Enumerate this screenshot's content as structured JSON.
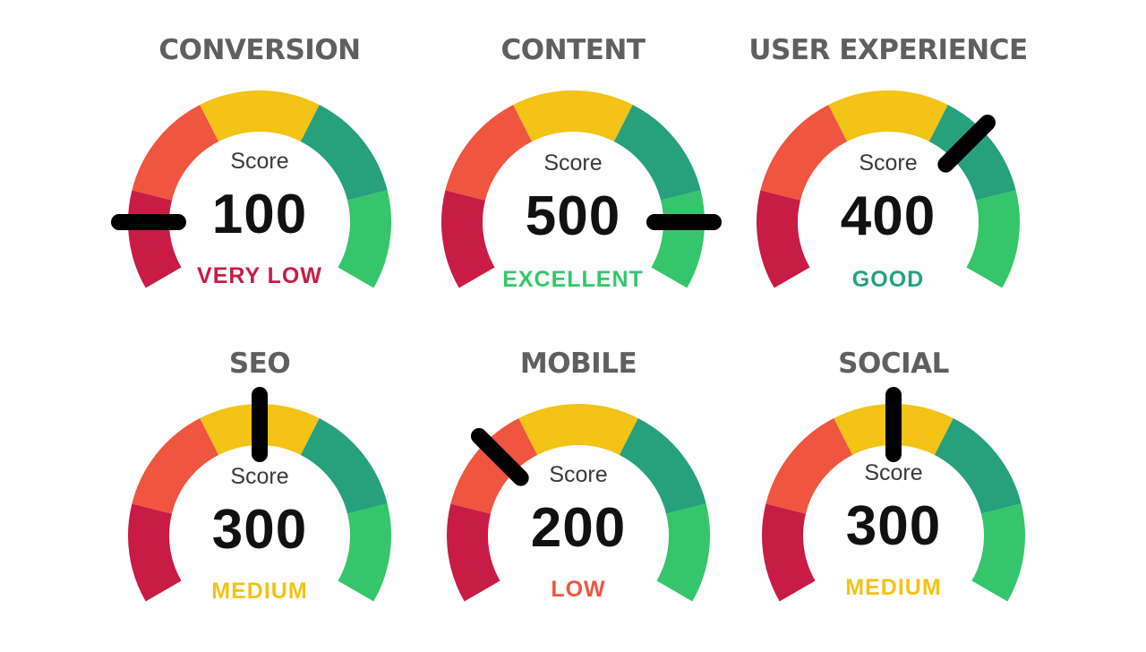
{
  "colors": {
    "red": "#c81c45",
    "orange": "#f05540",
    "yellow": "#f3c316",
    "teal": "#27a07c",
    "green": "#35c66b",
    "needle": "#000000",
    "title": "#5f5f5f"
  },
  "gauges": [
    {
      "title": "CONVERSION",
      "score_label": "Score",
      "value": "100",
      "rating": "VERY LOW",
      "rating_color": "#c81c45",
      "level": 100,
      "scale": [
        100,
        500
      ]
    },
    {
      "title": "CONTENT",
      "score_label": "Score",
      "value": "500",
      "rating": "EXCELLENT",
      "rating_color": "#35c66b",
      "level": 500,
      "scale": [
        100,
        500
      ]
    },
    {
      "title": "USER EXPERIENCE",
      "score_label": "Score",
      "value": "400",
      "rating": "GOOD",
      "rating_color": "#27a07c",
      "level": 400,
      "scale": [
        100,
        500
      ]
    },
    {
      "title": "SEO",
      "score_label": "Score",
      "value": "300",
      "rating": "MEDIUM",
      "rating_color": "#f3c316",
      "level": 300,
      "scale": [
        100,
        500
      ]
    },
    {
      "title": "MOBILE",
      "score_label": "Score",
      "value": "200",
      "rating": "LOW",
      "rating_color": "#f05540",
      "level": 200,
      "scale": [
        100,
        500
      ]
    },
    {
      "title": "SOCIAL",
      "score_label": "Score",
      "value": "300",
      "rating": "MEDIUM",
      "rating_color": "#f3c316",
      "level": 300,
      "scale": [
        100,
        500
      ]
    }
  ]
}
